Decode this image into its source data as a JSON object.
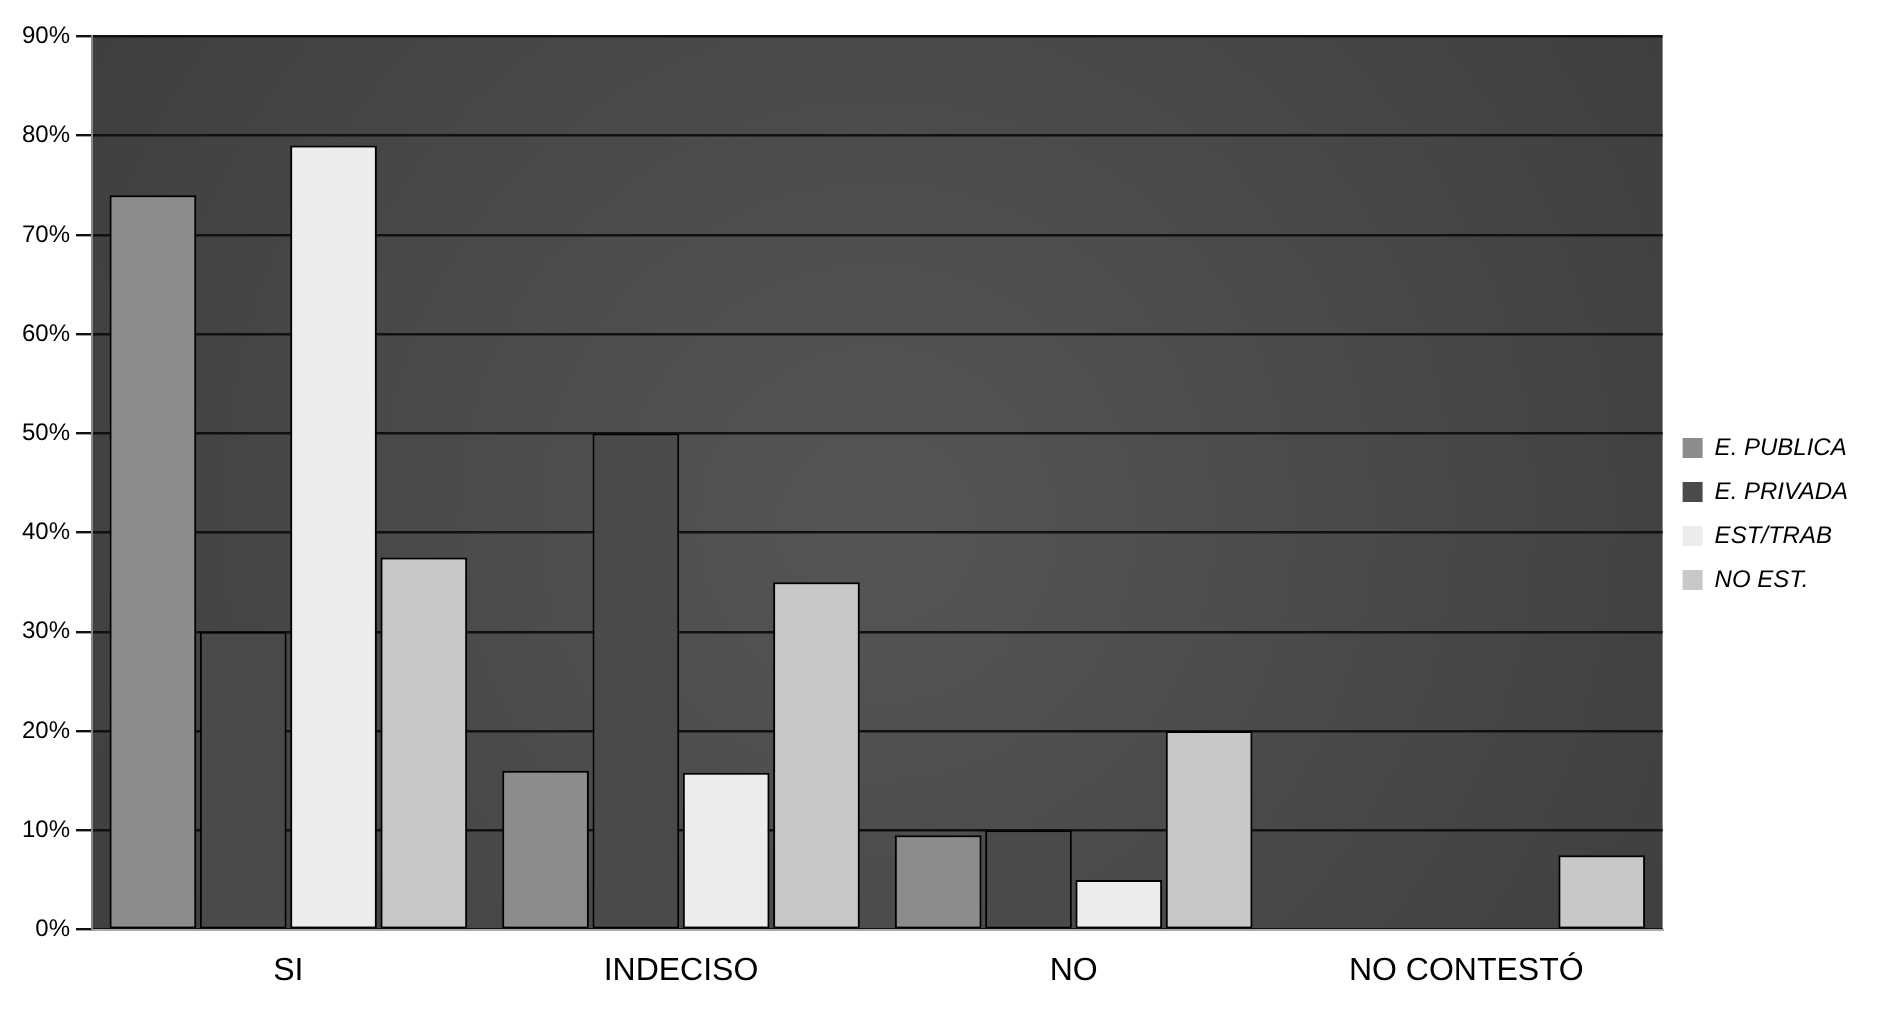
{
  "chart_data": {
    "type": "bar",
    "categories": [
      "SI",
      "INDECISO",
      "NO",
      "NO CONTESTÓ"
    ],
    "series": [
      {
        "name": "E. PUBLICA",
        "color": "#8c8c8c",
        "values": [
          74,
          16,
          9.5,
          null
        ]
      },
      {
        "name": "E. PRIVADA",
        "color": "#4a4a4a",
        "values": [
          30,
          50,
          10,
          null
        ]
      },
      {
        "name": "EST/TRAB",
        "color": "#ececec",
        "values": [
          79,
          15.8,
          5,
          null
        ]
      },
      {
        "name": "NO EST.",
        "color": "#c8c8c8",
        "values": [
          37.5,
          35,
          20,
          7.5
        ]
      }
    ],
    "ylim": [
      0,
      90
    ],
    "yticks": [
      {
        "value": 0,
        "label": "0%"
      },
      {
        "value": 10,
        "label": "10%"
      },
      {
        "value": 20,
        "label": "20%"
      },
      {
        "value": 30,
        "label": "30%"
      },
      {
        "value": 40,
        "label": "40%"
      },
      {
        "value": 50,
        "label": "50%"
      },
      {
        "value": 60,
        "label": "60%"
      },
      {
        "value": 70,
        "label": "70%"
      },
      {
        "value": 80,
        "label": "80%"
      },
      {
        "value": 90,
        "label": "90%"
      }
    ],
    "grid": "y",
    "legend": "right"
  }
}
